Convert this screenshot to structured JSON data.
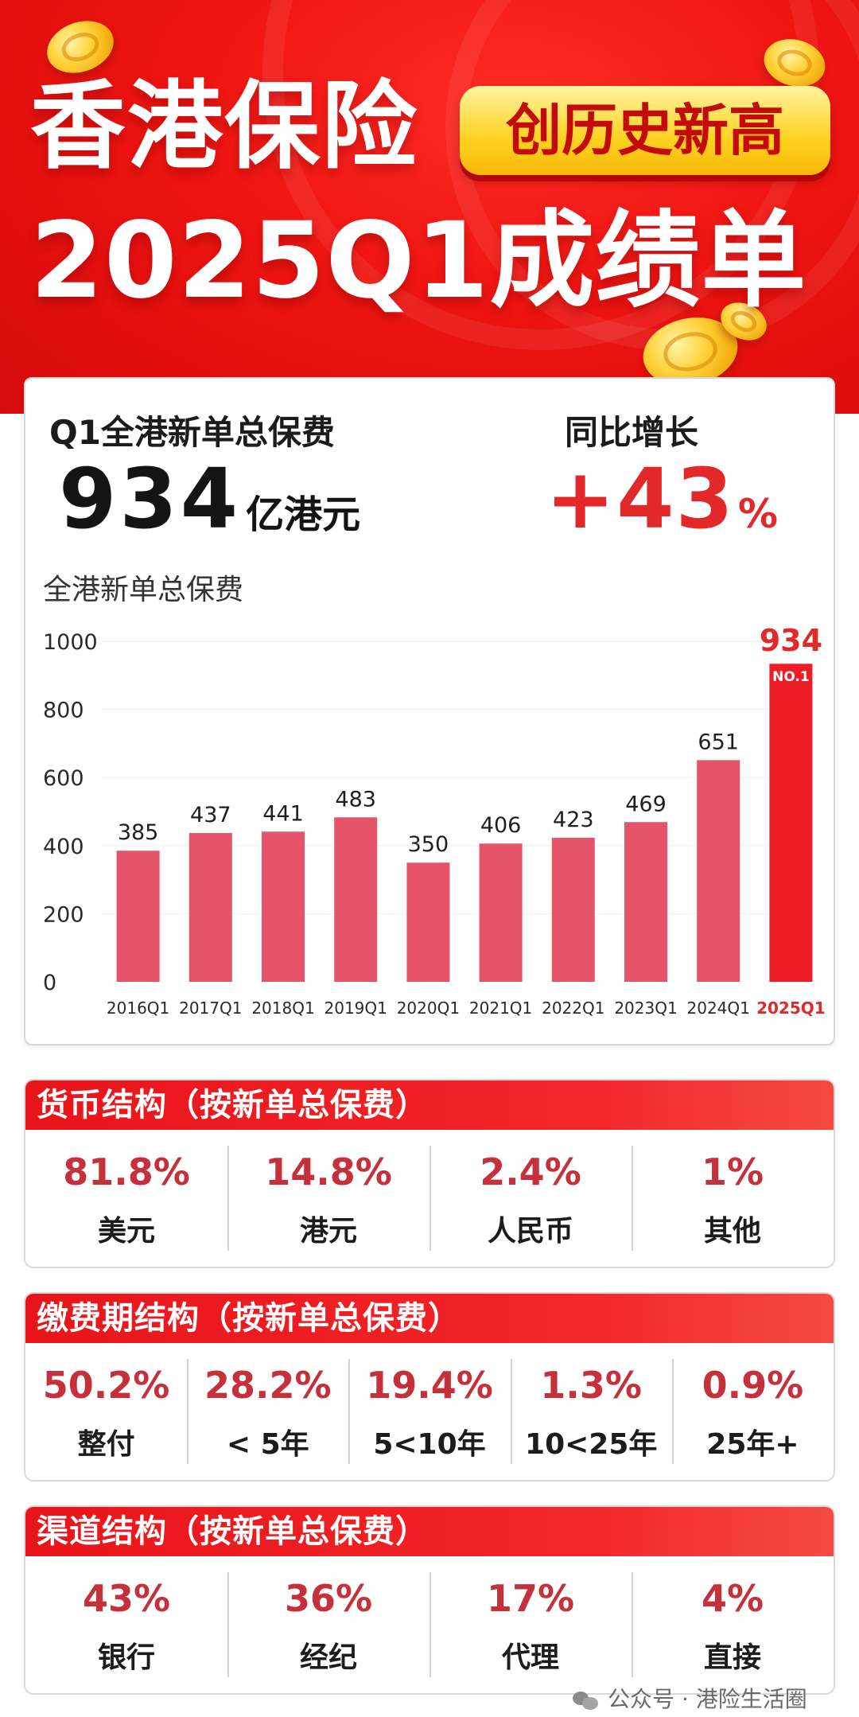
{
  "header": {
    "title_line1": "香港保险",
    "badge": "创历史新高",
    "title_line2": "2025Q1成绩单"
  },
  "summary": {
    "total_label": "Q1全港新单总保费",
    "total_value": "934",
    "total_unit": "亿港元",
    "growth_label": "同比增长",
    "growth_value": "+43",
    "growth_unit": "%"
  },
  "chart_data": {
    "type": "bar",
    "title": "全港新单总保费",
    "categories": [
      "2016Q1",
      "2017Q1",
      "2018Q1",
      "2019Q1",
      "2020Q1",
      "2021Q1",
      "2022Q1",
      "2023Q1",
      "2024Q1",
      "2025Q1"
    ],
    "values": [
      385,
      437,
      441,
      483,
      350,
      406,
      423,
      469,
      651,
      934
    ],
    "ylim": [
      0,
      1000
    ],
    "yticks": [
      0,
      200,
      400,
      600,
      800,
      1000
    ],
    "highlight_index": 9,
    "highlight_tag": "NO.1",
    "colors": {
      "bar": "#e6546a",
      "highlight": "#ee1c24",
      "highlight_label": "#e3282a"
    },
    "grid": false
  },
  "sections": [
    {
      "title": "货币结构（按新单总保费）",
      "items": [
        {
          "pct": "81.8%",
          "label": "美元"
        },
        {
          "pct": "14.8%",
          "label": "港元"
        },
        {
          "pct": "2.4%",
          "label": "人民币"
        },
        {
          "pct": "1%",
          "label": "其他"
        }
      ]
    },
    {
      "title": "缴费期结构（按新单总保费）",
      "items": [
        {
          "pct": "50.2%",
          "label": "整付"
        },
        {
          "pct": "28.2%",
          "label": "< 5年"
        },
        {
          "pct": "19.4%",
          "label": "5<10年"
        },
        {
          "pct": "1.3%",
          "label": "10<25年"
        },
        {
          "pct": "0.9%",
          "label": "25年+"
        }
      ]
    },
    {
      "title": "渠道结构（按新单总保费）",
      "items": [
        {
          "pct": "43%",
          "label": "银行"
        },
        {
          "pct": "36%",
          "label": "经纪"
        },
        {
          "pct": "17%",
          "label": "代理"
        },
        {
          "pct": "4%",
          "label": "直接"
        }
      ]
    }
  ],
  "footer": {
    "text": "公众号 · 港险生活圈",
    "icon": "wechat-icon"
  }
}
